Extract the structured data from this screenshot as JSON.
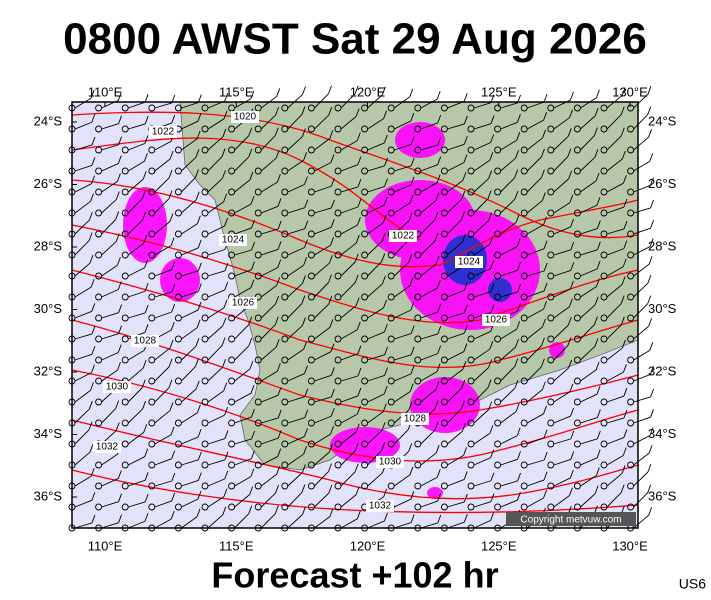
{
  "title": "0800 AWST Sat 29 Aug 2026",
  "footer": "Forecast +102 hr",
  "code": "US6",
  "copyright": "Copyright metvuw.com",
  "lon_ticks": [
    {
      "value": 110,
      "label": "110°E"
    },
    {
      "value": 115,
      "label": "115°E"
    },
    {
      "value": 120,
      "label": "120°E"
    },
    {
      "value": 125,
      "label": "125°E"
    },
    {
      "value": 130,
      "label": "130°E"
    }
  ],
  "lat_ticks": [
    {
      "value": 24,
      "label": "24°S"
    },
    {
      "value": 26,
      "label": "26°S"
    },
    {
      "value": 28,
      "label": "28°S"
    },
    {
      "value": 30,
      "label": "30°S"
    },
    {
      "value": 32,
      "label": "32°S"
    },
    {
      "value": 34,
      "label": "34°S"
    },
    {
      "value": 36,
      "label": "36°S"
    }
  ],
  "isobar_labels": [
    "1020",
    "1022",
    "1024",
    "1026",
    "1028",
    "1030",
    "1032",
    "1022",
    "1024",
    "1026",
    "1028",
    "1030",
    "1032"
  ]
}
